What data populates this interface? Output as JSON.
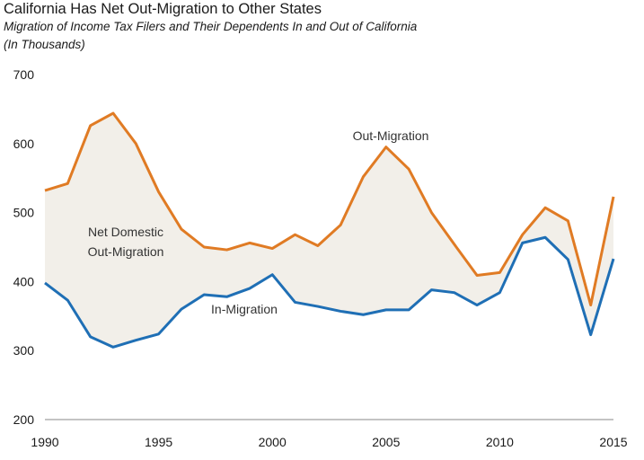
{
  "chart_data": {
    "type": "line",
    "title": "California Has Net Out-Migration to Other States",
    "subtitle": "Migration of Income Tax Filers and Their Dependents In and Out of California",
    "units": "(In Thousands)",
    "xlabel": "",
    "ylabel": "",
    "x": [
      1990,
      1991,
      1992,
      1993,
      1994,
      1995,
      1996,
      1997,
      1998,
      1999,
      2000,
      2001,
      2002,
      2003,
      2004,
      2005,
      2006,
      2007,
      2008,
      2009,
      2010,
      2011,
      2012,
      2013,
      2014,
      2015
    ],
    "xticks": [
      "1990",
      "1995",
      "2000",
      "2005",
      "2010",
      "2015"
    ],
    "yticks": [
      "200",
      "300",
      "400",
      "500",
      "600",
      "700"
    ],
    "ylim": [
      200,
      700
    ],
    "xlim": [
      1990,
      2015
    ],
    "grid": false,
    "shade_between_series": true,
    "series": [
      {
        "name": "Out-Migration",
        "color": "#e07b24",
        "values": [
          532,
          542,
          626,
          644,
          600,
          530,
          476,
          450,
          446,
          456,
          448,
          468,
          452,
          482,
          552,
          595,
          563,
          500,
          454,
          409,
          413,
          468,
          507,
          488,
          366,
          523
        ]
      },
      {
        "name": "In-Migration",
        "color": "#1f6fb5",
        "values": [
          398,
          373,
          320,
          305,
          315,
          324,
          360,
          381,
          378,
          390,
          410,
          370,
          364,
          357,
          352,
          359,
          359,
          388,
          384,
          366,
          384,
          456,
          464,
          432,
          323,
          433
        ]
      }
    ],
    "annotations": [
      "Net Domestic",
      "Out-Migration",
      "Out-Migration",
      "In-Migration"
    ],
    "fill_color": "#f2efe9",
    "axis_color": "#888888"
  }
}
